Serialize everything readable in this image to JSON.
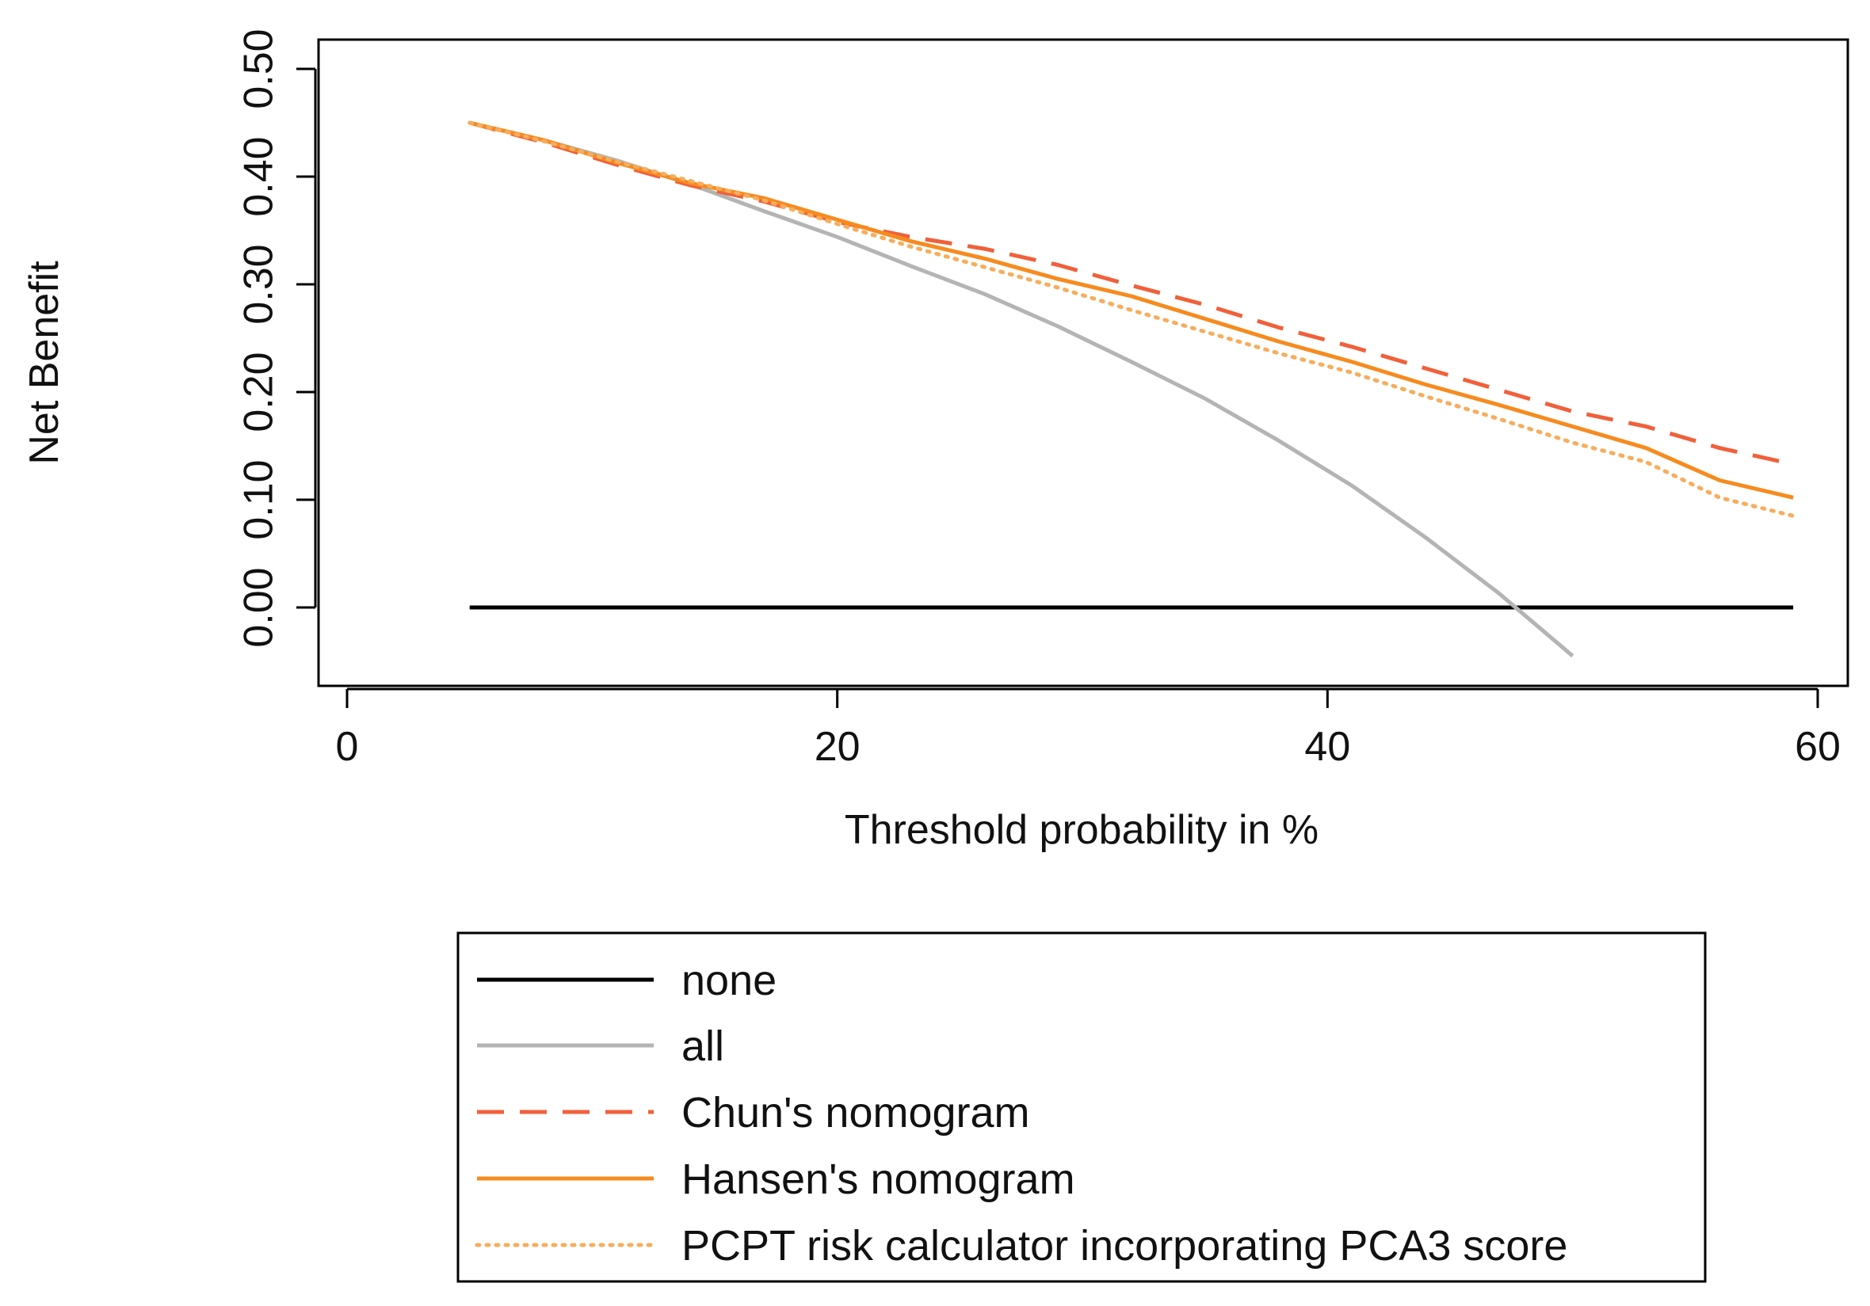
{
  "chart_data": {
    "type": "line",
    "title": "",
    "xlabel": "Threshold probability in %",
    "ylabel": "Net Benefit",
    "xlim": [
      0,
      60
    ],
    "ylim": [
      -0.06,
      0.52
    ],
    "x_ticks": [
      0,
      20,
      40,
      60
    ],
    "x_tick_labels": [
      "0",
      "20",
      "40",
      "60"
    ],
    "y_ticks": [
      0.0,
      0.1,
      0.2,
      0.3,
      0.4,
      0.5
    ],
    "y_tick_labels": [
      "0.00",
      "0.10",
      "0.20",
      "0.30",
      "0.40",
      "0.50"
    ],
    "grid": false,
    "legend_position": "bottom",
    "series": [
      {
        "name": "none",
        "color": "#000000",
        "style": "solid",
        "x": [
          5,
          59
        ],
        "y": [
          0.0,
          0.0
        ]
      },
      {
        "name": "all",
        "color": "#b4b4b4",
        "style": "solid",
        "x": [
          5,
          8,
          11,
          14,
          17,
          20,
          23,
          26,
          29,
          32,
          35,
          38,
          41,
          44,
          47,
          50
        ],
        "y": [
          0.45,
          0.434,
          0.415,
          0.393,
          0.368,
          0.344,
          0.317,
          0.291,
          0.261,
          0.228,
          0.194,
          0.155,
          0.113,
          0.065,
          0.013,
          -0.045
        ]
      },
      {
        "name": "Chun's nomogram",
        "color": "#f0603a",
        "style": "dashed",
        "x": [
          5,
          8,
          11,
          14,
          17,
          20,
          23,
          26,
          29,
          32,
          35,
          38,
          41,
          44,
          47,
          50,
          53,
          56,
          59
        ],
        "y": [
          0.45,
          0.432,
          0.411,
          0.392,
          0.377,
          0.358,
          0.344,
          0.333,
          0.318,
          0.299,
          0.281,
          0.26,
          0.242,
          0.222,
          0.202,
          0.182,
          0.168,
          0.148,
          0.133
        ]
      },
      {
        "name": "Hansen's nomogram",
        "color": "#f68b1f",
        "style": "solid",
        "x": [
          5,
          8,
          11,
          14,
          17,
          20,
          23,
          26,
          29,
          32,
          35,
          38,
          41,
          44,
          47,
          50,
          53,
          56,
          59
        ],
        "y": [
          0.45,
          0.434,
          0.413,
          0.394,
          0.38,
          0.36,
          0.34,
          0.324,
          0.305,
          0.289,
          0.268,
          0.247,
          0.228,
          0.207,
          0.188,
          0.168,
          0.148,
          0.118,
          0.102
        ]
      },
      {
        "name": "PCPT risk calculator incorporating PCA3 score",
        "color": "#f7ad5c",
        "style": "dotted",
        "x": [
          5,
          8,
          11,
          14,
          17,
          20,
          23,
          26,
          29,
          32,
          35,
          38,
          41,
          44,
          47,
          50,
          53,
          56,
          59
        ],
        "y": [
          0.45,
          0.433,
          0.414,
          0.396,
          0.378,
          0.356,
          0.335,
          0.316,
          0.297,
          0.276,
          0.256,
          0.236,
          0.218,
          0.196,
          0.175,
          0.153,
          0.135,
          0.102,
          0.085
        ]
      }
    ]
  }
}
